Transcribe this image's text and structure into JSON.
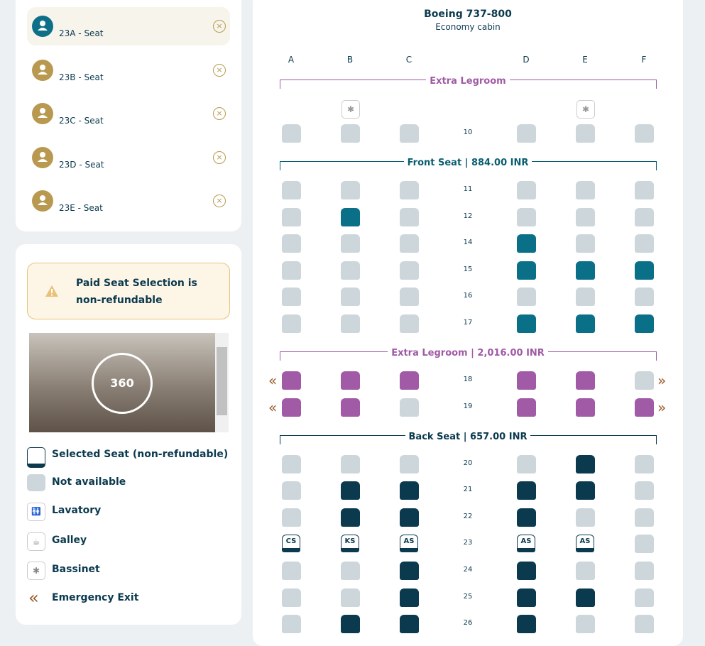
{
  "passengers": [
    {
      "label": "23A - Seat"
    },
    {
      "label": "23B - Seat"
    },
    {
      "label": "23C - Seat"
    },
    {
      "label": "23D - Seat"
    },
    {
      "label": "23E - Seat"
    }
  ],
  "notice": "Paid Seat Selection is non-refundable",
  "panorama": "360",
  "legend": [
    {
      "label": "Selected Seat (non-refundable)"
    },
    {
      "label": "Not available"
    },
    {
      "label": "Lavatory"
    },
    {
      "label": "Galley"
    },
    {
      "label": "Bassinet"
    },
    {
      "label": "Emergency Exit"
    }
  ],
  "seatmap": {
    "title": "Boeing 737-800",
    "subtitle": "Economy cabin",
    "columns": [
      "A",
      "B",
      "C",
      "D",
      "E",
      "F"
    ],
    "sections": [
      {
        "title": "Extra Legroom",
        "color": "#a05aa6",
        "rows": [
          {
            "number": "10",
            "bassinet": [
              "B",
              "E"
            ],
            "seats": [
              "x",
              "x",
              "x",
              "x",
              "x",
              "x"
            ]
          }
        ]
      },
      {
        "title": "Front Seat | 884.00 INR",
        "color": "#0a5e72",
        "rows": [
          {
            "number": "11",
            "seats": [
              "x",
              "x",
              "x",
              "x",
              "x",
              "x"
            ]
          },
          {
            "number": "12",
            "seats": [
              "x",
              "f",
              "x",
              "x",
              "x",
              "x"
            ]
          },
          {
            "number": "14",
            "seats": [
              "x",
              "x",
              "x",
              "f",
              "x",
              "x"
            ]
          },
          {
            "number": "15",
            "seats": [
              "x",
              "x",
              "x",
              "f",
              "f",
              "f"
            ]
          },
          {
            "number": "16",
            "seats": [
              "x",
              "x",
              "x",
              "x",
              "x",
              "x"
            ]
          },
          {
            "number": "17",
            "seats": [
              "x",
              "x",
              "x",
              "f",
              "f",
              "f"
            ]
          }
        ]
      },
      {
        "title": "Extra Legroom | 2,016.00 INR",
        "color": "#a05aa6",
        "rows": [
          {
            "number": "18",
            "exit": "«»",
            "seats": [
              "l",
              "l",
              "l",
              "l",
              "l",
              "x"
            ]
          },
          {
            "number": "19",
            "exit": "«»",
            "seats": [
              "l",
              "l",
              "x",
              "l",
              "l",
              "l"
            ]
          }
        ]
      },
      {
        "title": "Back Seat | 657.00 INR",
        "color": "#0b3a4f",
        "rows": [
          {
            "number": "20",
            "seats": [
              "x",
              "x",
              "x",
              "x",
              "b",
              "x"
            ]
          },
          {
            "number": "21",
            "seats": [
              "x",
              "b",
              "b",
              "b",
              "b",
              "x"
            ]
          },
          {
            "number": "22",
            "seats": [
              "x",
              "b",
              "b",
              "b",
              "x",
              "x"
            ]
          },
          {
            "number": "23",
            "seats": [
              {
                "status": "s",
                "tag": "CS"
              },
              {
                "status": "s",
                "tag": "KS"
              },
              {
                "status": "s",
                "tag": "AS"
              },
              {
                "status": "s",
                "tag": "AS"
              },
              {
                "status": "s",
                "tag": "AS"
              },
              "x"
            ]
          },
          {
            "number": "24",
            "seats": [
              "x",
              "x",
              "b",
              "b",
              "x",
              "x"
            ]
          },
          {
            "number": "25",
            "seats": [
              "x",
              "x",
              "b",
              "b",
              "b",
              "x"
            ]
          },
          {
            "number": "26",
            "seats": [
              "x",
              "b",
              "b",
              "b",
              "x",
              "x"
            ]
          }
        ]
      }
    ]
  }
}
